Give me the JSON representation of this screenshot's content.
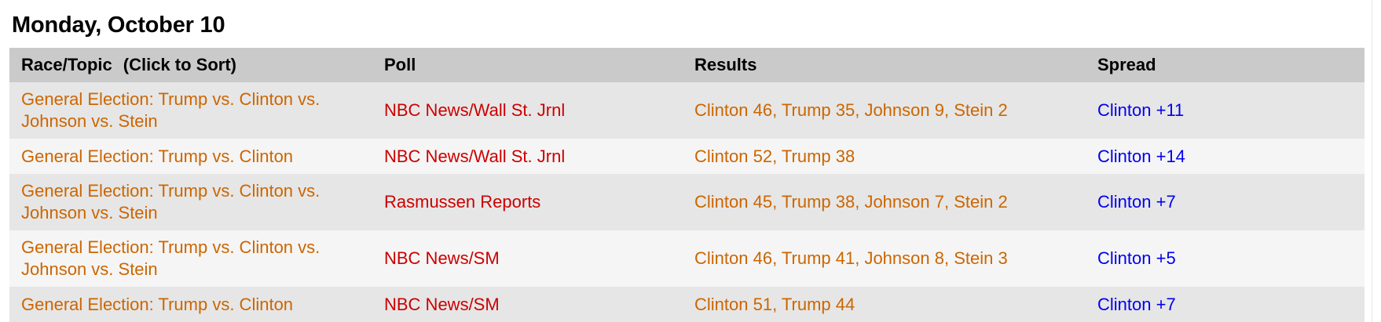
{
  "date_heading": "Monday, October 10",
  "table": {
    "headers": {
      "race": "Race/Topic",
      "sort_hint": "(Click to Sort)",
      "poll": "Poll",
      "results": "Results",
      "spread": "Spread"
    },
    "rows": [
      {
        "race": "General Election: Trump vs. Clinton vs. Johnson vs. Stein",
        "poll": "NBC News/Wall St. Jrnl",
        "results": "Clinton 46, Trump 35, Johnson 9, Stein 2",
        "spread": "Clinton +11"
      },
      {
        "race": "General Election: Trump vs. Clinton",
        "poll": "NBC News/Wall St. Jrnl",
        "results": "Clinton 52, Trump 38",
        "spread": "Clinton +14"
      },
      {
        "race": "General Election: Trump vs. Clinton vs. Johnson vs. Stein",
        "poll": "Rasmussen Reports",
        "results": "Clinton 45, Trump 38, Johnson 7, Stein 2",
        "spread": "Clinton +7"
      },
      {
        "race": "General Election: Trump vs. Clinton vs. Johnson vs. Stein",
        "poll": "NBC News/SM",
        "results": "Clinton 46, Trump 41, Johnson 8, Stein 3",
        "spread": "Clinton +5"
      },
      {
        "race": "General Election: Trump vs. Clinton",
        "poll": "NBC News/SM",
        "results": "Clinton 51, Trump 44",
        "spread": "Clinton +7"
      }
    ]
  },
  "colors": {
    "race_link": "#cc6600",
    "poll_link": "#cc0000",
    "results": "#cc6600",
    "spread": "#0000ee",
    "header_bg": "#cacaca",
    "row_odd_bg": "#e6e6e6",
    "row_even_bg": "#f5f5f5"
  }
}
